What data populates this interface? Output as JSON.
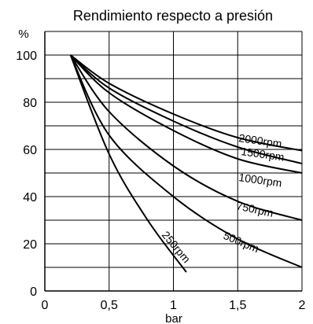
{
  "chart_data": {
    "type": "line",
    "title": "Rendimiento respecto a presión",
    "xlabel": "bar",
    "ylabel": "%",
    "xlim": [
      0,
      2
    ],
    "ylim": [
      0,
      110
    ],
    "x_ticks": [
      0,
      0.5,
      1,
      1.5,
      2
    ],
    "x_tick_labels": [
      "0",
      "0,5",
      "1",
      "1,5",
      "2"
    ],
    "y_ticks": [
      0,
      20,
      40,
      60,
      80,
      100
    ],
    "y_tick_labels": [
      "0",
      "20",
      "40",
      "60",
      "80",
      "100"
    ],
    "grid": true,
    "legend": "none",
    "series": [
      {
        "name": "2000rpm",
        "x": [
          0.2,
          0.5,
          1.0,
          1.5,
          2.0
        ],
        "values": [
          100,
          88,
          75,
          65,
          59.5
        ]
      },
      {
        "name": "1500rpm",
        "x": [
          0.2,
          0.5,
          1.0,
          1.5,
          2.0
        ],
        "values": [
          100,
          86,
          72,
          61,
          54
        ]
      },
      {
        "name": "1000rpm",
        "x": [
          0.2,
          0.5,
          1.0,
          1.5,
          2.0
        ],
        "values": [
          100,
          84,
          68,
          56,
          50
        ]
      },
      {
        "name": "750rpm",
        "x": [
          0.2,
          0.5,
          1.0,
          1.5,
          2.0
        ],
        "values": [
          100,
          76,
          53,
          38,
          30
        ]
      },
      {
        "name": "500rpm",
        "x": [
          0.2,
          0.5,
          1.0,
          1.5,
          2.0
        ],
        "values": [
          100,
          66,
          40,
          22,
          10
        ]
      },
      {
        "name": "250rpm",
        "x": [
          0.2,
          0.5,
          0.8,
          1.1
        ],
        "values": [
          100,
          58,
          30,
          8
        ]
      }
    ]
  }
}
